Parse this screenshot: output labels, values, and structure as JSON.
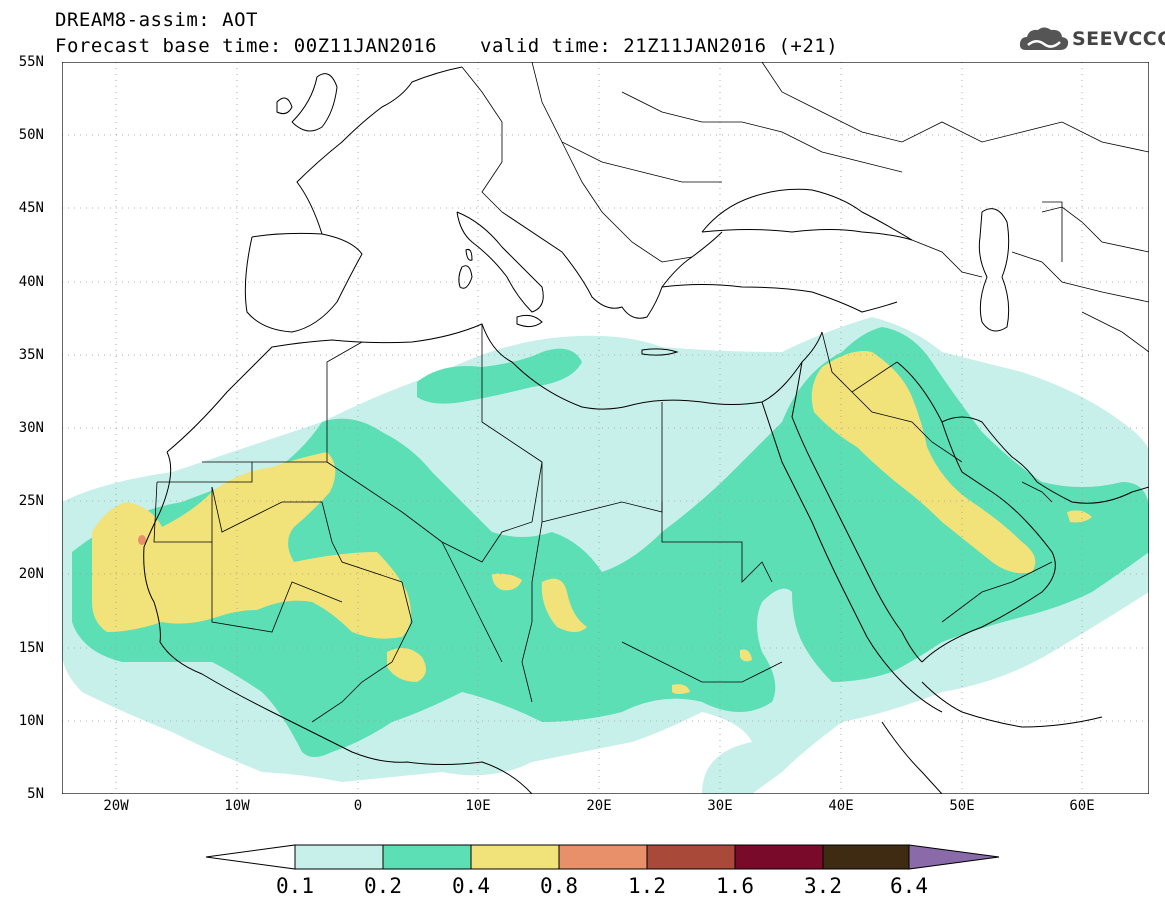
{
  "header": {
    "title": "DREAM8-assim: AOT",
    "forecast": "Forecast base time: 00Z11JAN2016",
    "valid": "valid time: 21Z11JAN2016 (+21)"
  },
  "logo": {
    "text": "SEEVCCC",
    "icon": "cloud-icon"
  },
  "map": {
    "lon_range": [
      -25,
      65
    ],
    "lat_range": [
      5,
      55
    ],
    "lat_labels": [
      "55N",
      "50N",
      "45N",
      "40N",
      "35N",
      "30N",
      "25N",
      "20N",
      "15N",
      "10N",
      "5N"
    ],
    "lon_labels": [
      "20W",
      "10W",
      "0",
      "10E",
      "20E",
      "30E",
      "40E",
      "50E",
      "60E"
    ],
    "projection": "lat-lon",
    "coastlines": true,
    "country_borders": true,
    "gridlines": "dotted"
  },
  "colorbar": {
    "levels": [
      "0.1",
      "0.2",
      "0.4",
      "0.8",
      "1.2",
      "1.6",
      "3.2",
      "6.4"
    ],
    "colors": [
      "#ffffff",
      "#c8f0ea",
      "#5ddfb5",
      "#f2e27a",
      "#e8906a",
      "#a9493a",
      "#7a0a2a",
      "#3f2a12",
      "#8a6aa8"
    ]
  },
  "colors": {
    "aot_01_02": "#c8f0ea",
    "aot_02_04": "#5ddfb5",
    "aot_04_08": "#f2e27a",
    "aot_08_12": "#e8906a"
  }
}
